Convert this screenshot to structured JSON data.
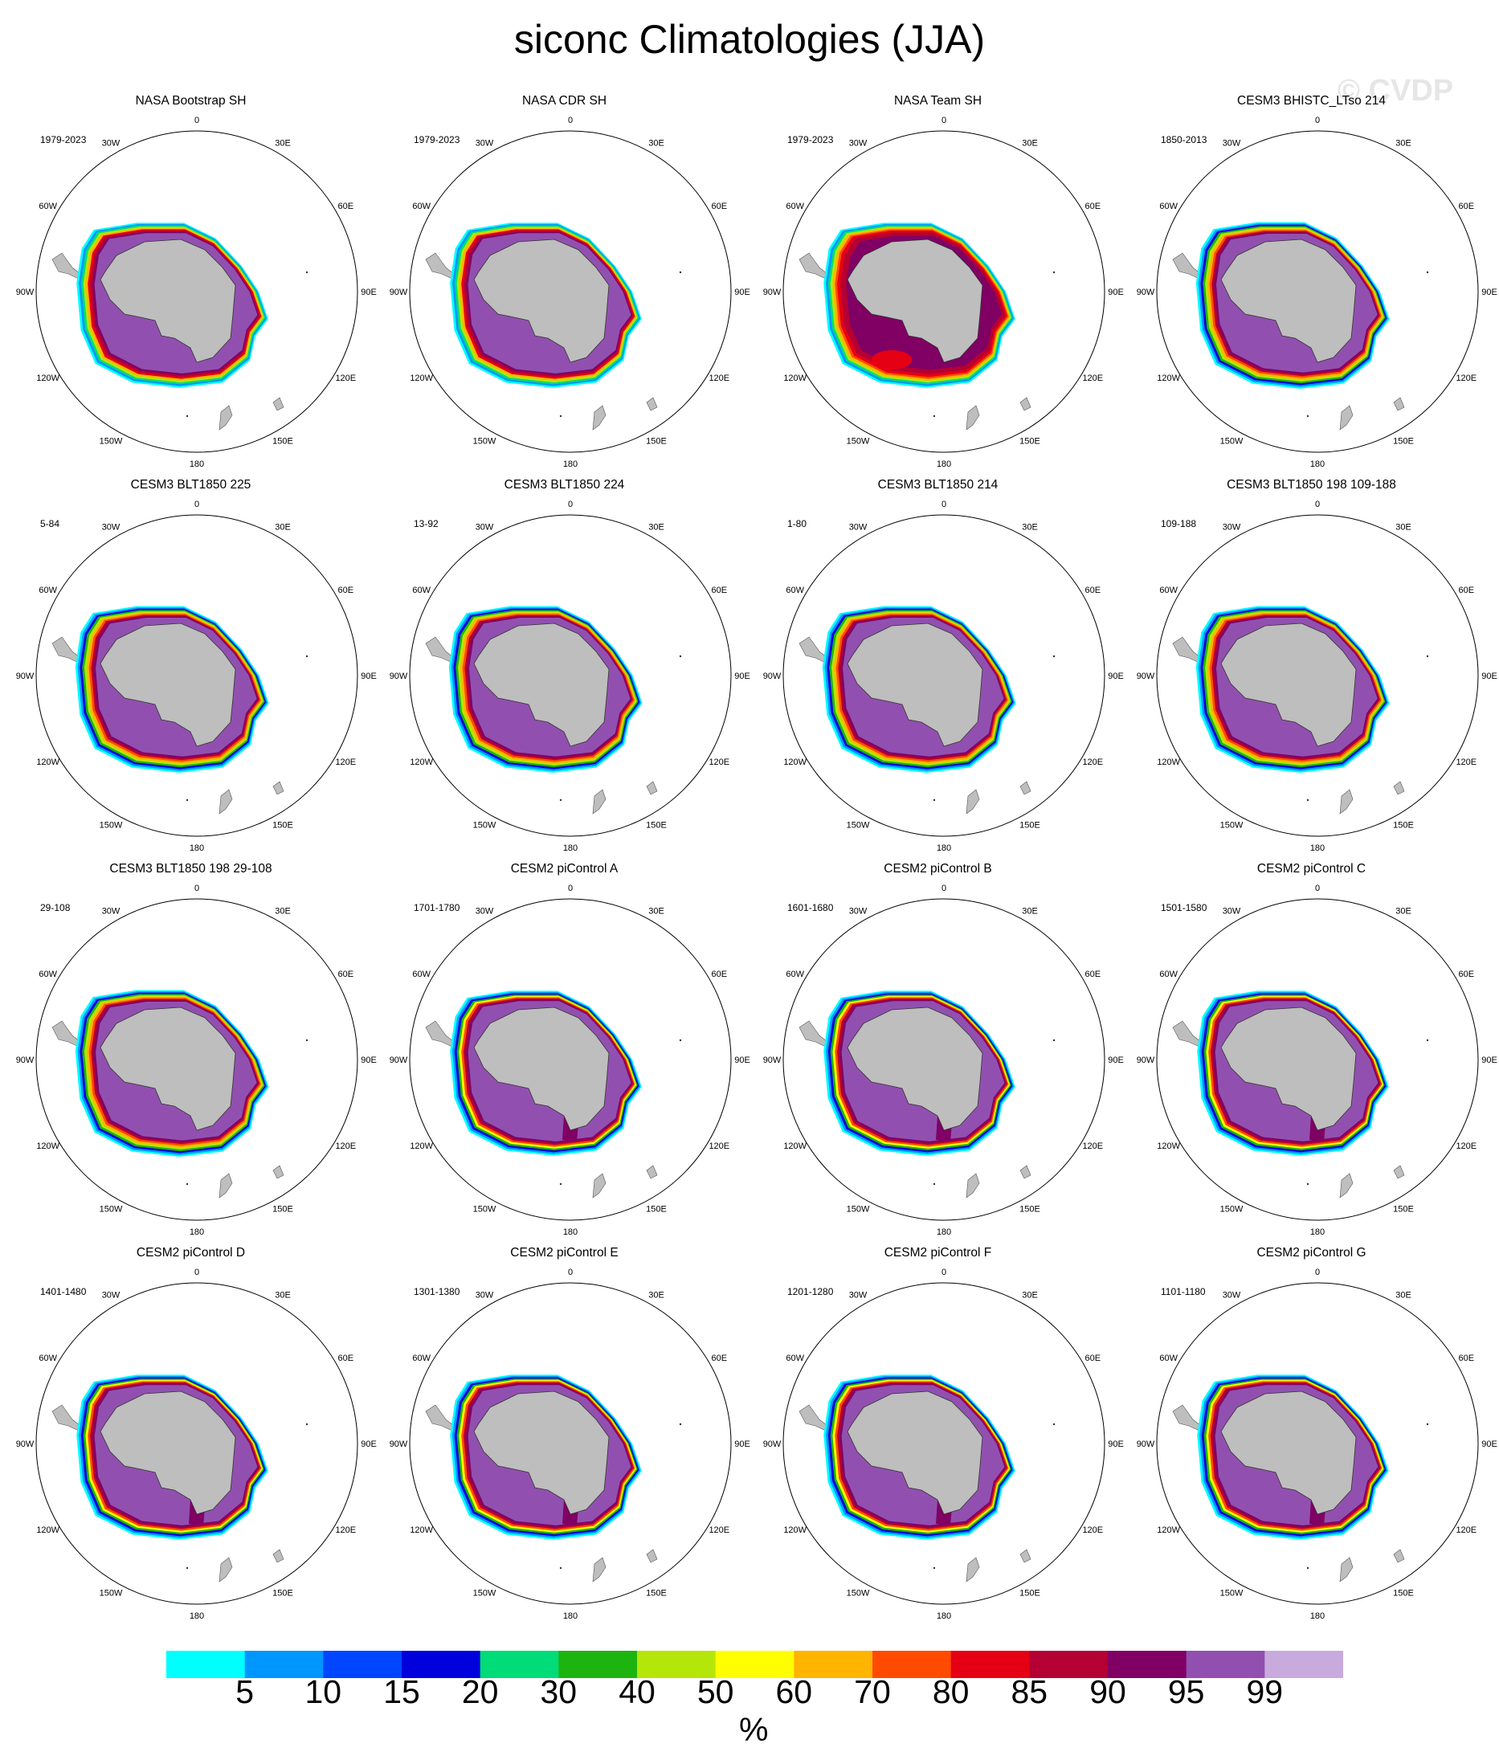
{
  "title": "siconc Climatologies (JJA)",
  "watermark": "© CVDP",
  "colorbar": {
    "unit": "%",
    "levels": [
      "5",
      "10",
      "15",
      "20",
      "30",
      "40",
      "50",
      "60",
      "70",
      "80",
      "85",
      "90",
      "95",
      "99"
    ],
    "colors": [
      "#00ffff",
      "#0096ff",
      "#0046ff",
      "#0000dc",
      "#00dc78",
      "#1eb40f",
      "#b4e60a",
      "#ffff00",
      "#ffb400",
      "#ff4b00",
      "#e60014",
      "#b40032",
      "#800064",
      "#9150af",
      "#c8aadc"
    ]
  },
  "map": {
    "land_color": "#bebebe",
    "lon_labels": [
      "0",
      "30E",
      "60E",
      "90E",
      "120E",
      "150E",
      "180",
      "150W",
      "120W",
      "90W",
      "60W",
      "30W"
    ]
  },
  "chart_data": {
    "type": "heatmap",
    "title": "siconc Climatologies (JJA)",
    "projection": "south polar stereographic",
    "colorbar_unit": "%",
    "panels": [
      {
        "title": "NASA Bootstrap SH",
        "period": "1979-2023",
        "style": "bootstrap"
      },
      {
        "title": "NASA CDR SH",
        "period": "1979-2023",
        "style": "bootstrap"
      },
      {
        "title": "NASA Team SH",
        "period": "1979-2023",
        "style": "team"
      },
      {
        "title": "CESM3 BHISTC_LTso 214",
        "period": "1850-2013",
        "style": "cesm3"
      },
      {
        "title": "CESM3 BLT1850 225",
        "period": "5-84",
        "style": "cesm3"
      },
      {
        "title": "CESM3 BLT1850 224",
        "period": "13-92",
        "style": "cesm3"
      },
      {
        "title": "CESM3 BLT1850 214",
        "period": "1-80",
        "style": "cesm3"
      },
      {
        "title": "CESM3 BLT1850 198 109-188",
        "period": "109-188",
        "style": "cesm3"
      },
      {
        "title": "CESM3 BLT1850 198 29-108",
        "period": "29-108",
        "style": "cesm3"
      },
      {
        "title": "CESM2 piControl A",
        "period": "1701-1780",
        "style": "cesm2"
      },
      {
        "title": "CESM2 piControl B",
        "period": "1601-1680",
        "style": "cesm2"
      },
      {
        "title": "CESM2 piControl C",
        "period": "1501-1580",
        "style": "cesm2"
      },
      {
        "title": "CESM2 piControl D",
        "period": "1401-1480",
        "style": "cesm2"
      },
      {
        "title": "CESM2 piControl E",
        "period": "1301-1380",
        "style": "cesm2"
      },
      {
        "title": "CESM2 piControl F",
        "period": "1201-1280",
        "style": "cesm2"
      },
      {
        "title": "CESM2 piControl G",
        "period": "1101-1180",
        "style": "cesm2"
      }
    ]
  }
}
